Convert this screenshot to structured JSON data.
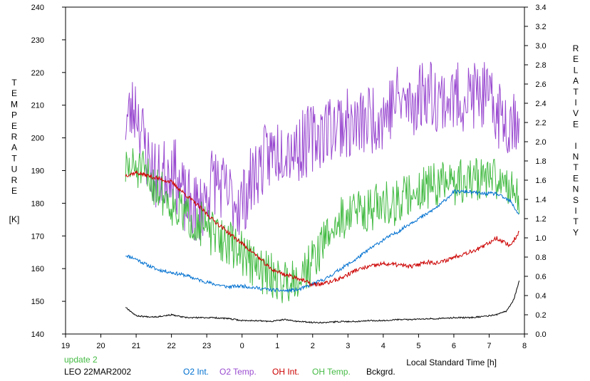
{
  "chart_data": {
    "type": "line",
    "y_left_label": "TEMPERATURE",
    "y_left_unit": "[K]",
    "y_right_label": "RELATIVE INTENSITY",
    "x_label": "Local Standard Time [h]",
    "update_label": "update 2",
    "site_date": "LEO 22MAR2002",
    "x_ticks": [
      "19",
      "20",
      "21",
      "22",
      "23",
      "0",
      "1",
      "2",
      "3",
      "4",
      "5",
      "6",
      "7",
      "8"
    ],
    "y_left_ticks": [
      "140",
      "150",
      "160",
      "170",
      "180",
      "190",
      "200",
      "210",
      "220",
      "230",
      "240"
    ],
    "y_right_ticks": [
      "0.0",
      "0.2",
      "0.4",
      "0.6",
      "0.8",
      "1.0",
      "1.2",
      "1.4",
      "1.6",
      "1.8",
      "2.0",
      "2.2",
      "2.4",
      "2.6",
      "2.8",
      "3.0",
      "3.2",
      "3.4"
    ],
    "xlim": [
      19,
      32
    ],
    "ylim_left": [
      140,
      240
    ],
    "ylim_right": [
      0.0,
      3.4
    ],
    "grid": false,
    "legend_placement": "bottom",
    "series": [
      {
        "name": "O2 Int.",
        "color": "#0070d0",
        "axis": "right",
        "x": [
          20.7,
          21.0,
          21.3,
          21.6,
          22.0,
          22.4,
          22.8,
          23.2,
          23.6,
          24.0,
          24.4,
          24.8,
          25.2,
          25.6,
          26.0,
          26.4,
          26.8,
          27.2,
          27.6,
          28.0,
          28.4,
          28.8,
          29.2,
          29.6,
          30.0,
          30.4,
          30.8,
          31.2,
          31.6,
          31.85
        ],
        "y": [
          0.82,
          0.78,
          0.72,
          0.67,
          0.64,
          0.61,
          0.56,
          0.52,
          0.49,
          0.5,
          0.48,
          0.46,
          0.45,
          0.46,
          0.52,
          0.58,
          0.68,
          0.77,
          0.88,
          0.98,
          1.06,
          1.16,
          1.24,
          1.34,
          1.48,
          1.48,
          1.46,
          1.46,
          1.38,
          1.24
        ]
      },
      {
        "name": "O2 Temp.",
        "color": "#9a4bd0",
        "axis": "left",
        "x": [
          20.7,
          21.0,
          21.3,
          21.6,
          22.0,
          22.4,
          22.8,
          23.2,
          23.6,
          24.0,
          24.4,
          24.8,
          25.2,
          25.6,
          26.0,
          26.4,
          26.8,
          27.2,
          27.6,
          28.0,
          28.4,
          28.8,
          29.2,
          29.6,
          30.0,
          30.4,
          30.8,
          31.2,
          31.6,
          31.85
        ],
        "y": [
          205,
          210,
          195,
          187,
          192,
          180,
          178,
          188,
          182,
          180,
          190,
          195,
          198,
          197,
          200,
          203,
          205,
          203,
          206,
          207,
          212,
          210,
          215,
          212,
          212,
          213,
          213,
          208,
          205,
          208
        ]
      },
      {
        "name": "OH Int.",
        "color": "#cc0000",
        "axis": "right",
        "x": [
          20.7,
          21.0,
          21.3,
          21.6,
          22.0,
          22.4,
          22.8,
          23.2,
          23.6,
          24.0,
          24.4,
          24.8,
          25.2,
          25.6,
          26.0,
          26.4,
          26.8,
          27.2,
          27.6,
          28.0,
          28.4,
          28.8,
          29.2,
          29.6,
          30.0,
          30.4,
          30.8,
          31.2,
          31.6,
          31.85
        ],
        "y": [
          1.65,
          1.68,
          1.65,
          1.62,
          1.58,
          1.45,
          1.32,
          1.18,
          1.06,
          0.94,
          0.82,
          0.68,
          0.62,
          0.58,
          0.51,
          0.53,
          0.58,
          0.66,
          0.7,
          0.73,
          0.72,
          0.7,
          0.75,
          0.74,
          0.8,
          0.85,
          0.9,
          1.0,
          0.92,
          1.06
        ]
      },
      {
        "name": "OH Temp.",
        "color": "#44bb44",
        "axis": "left",
        "x": [
          20.7,
          21.0,
          21.3,
          21.6,
          22.0,
          22.4,
          22.8,
          23.2,
          23.6,
          24.0,
          24.4,
          24.8,
          25.2,
          25.6,
          26.0,
          26.4,
          26.8,
          27.2,
          27.6,
          28.0,
          28.4,
          28.8,
          29.2,
          29.6,
          30.0,
          30.4,
          30.8,
          31.2,
          31.6,
          31.85
        ],
        "y": [
          190,
          191,
          188,
          185,
          180,
          176,
          174,
          170,
          168,
          165,
          160,
          158,
          156,
          158,
          162,
          170,
          175,
          178,
          178,
          180,
          180,
          183,
          185,
          186,
          186,
          187,
          188,
          187,
          186,
          182
        ]
      },
      {
        "name": "Bckgrd.",
        "color": "#000000",
        "axis": "right",
        "x": [
          20.7,
          21.0,
          21.3,
          21.6,
          22.0,
          22.4,
          22.8,
          23.2,
          23.6,
          24.0,
          24.4,
          24.8,
          25.2,
          25.6,
          26.0,
          26.4,
          26.8,
          27.2,
          27.6,
          28.0,
          28.4,
          28.8,
          29.2,
          29.6,
          30.0,
          30.4,
          30.8,
          31.2,
          31.5,
          31.7,
          31.85
        ],
        "y": [
          0.28,
          0.19,
          0.18,
          0.18,
          0.2,
          0.17,
          0.17,
          0.17,
          0.16,
          0.14,
          0.14,
          0.13,
          0.15,
          0.13,
          0.12,
          0.12,
          0.13,
          0.13,
          0.14,
          0.14,
          0.15,
          0.15,
          0.16,
          0.16,
          0.17,
          0.17,
          0.18,
          0.2,
          0.24,
          0.36,
          0.55
        ]
      }
    ]
  }
}
